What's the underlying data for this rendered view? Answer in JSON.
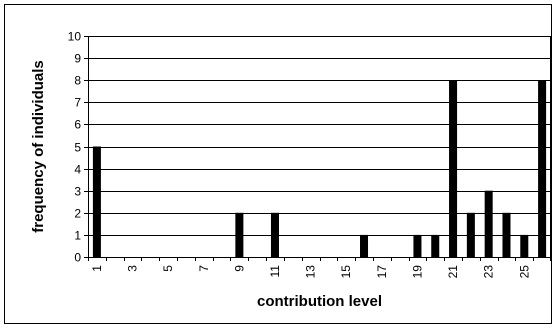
{
  "chart_data": {
    "type": "bar",
    "title": "",
    "xlabel": "contribution level",
    "ylabel": "frequency of individuals",
    "ylim": [
      0,
      10
    ],
    "yticks": [
      0,
      1,
      2,
      3,
      4,
      5,
      6,
      7,
      8,
      9,
      10
    ],
    "categories": [
      1,
      2,
      3,
      4,
      5,
      6,
      7,
      8,
      9,
      10,
      11,
      12,
      13,
      14,
      15,
      16,
      17,
      18,
      19,
      20,
      21,
      22,
      23,
      24,
      25,
      26
    ],
    "x_tick_labels": [
      "1",
      "3",
      "5",
      "7",
      "9",
      "11",
      "13",
      "15",
      "17",
      "19",
      "21",
      "23",
      "25"
    ],
    "values": [
      5,
      0,
      0,
      0,
      0,
      0,
      0,
      0,
      2,
      0,
      2,
      0,
      0,
      0,
      0,
      1,
      0,
      0,
      1,
      1,
      8,
      2,
      3,
      2,
      1,
      8
    ],
    "grid": true,
    "bar_color": "#000000"
  }
}
